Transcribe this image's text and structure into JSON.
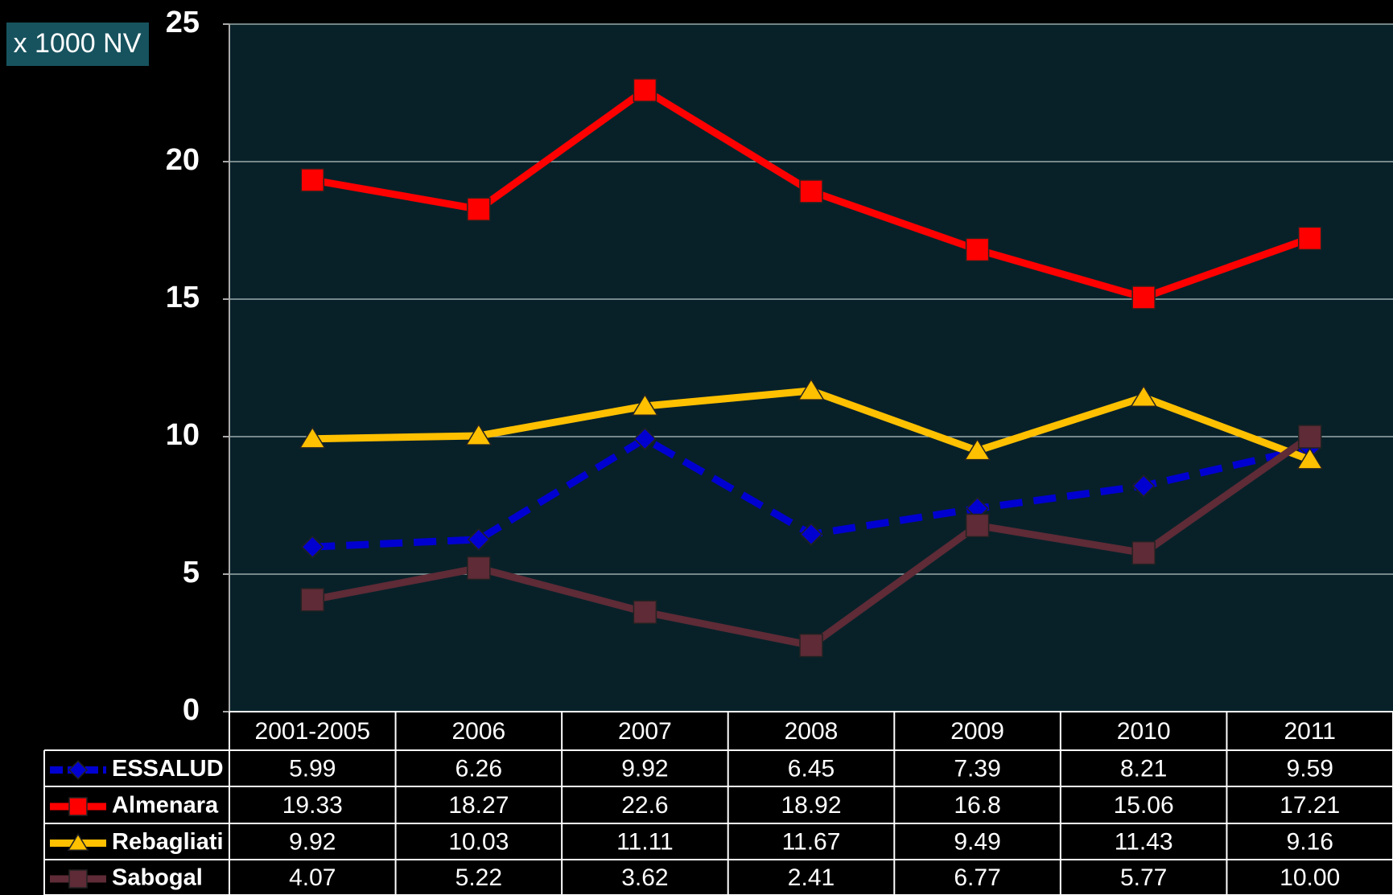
{
  "chart_data": {
    "type": "line",
    "y_label": "x 1000 NV",
    "categories": [
      "2001-2005",
      "2006",
      "2007",
      "2008",
      "2009",
      "2010",
      "2011"
    ],
    "series": [
      {
        "name": "ESSALUD",
        "color": "#0000d0",
        "marker": "diamond",
        "dashed": true,
        "values": [
          5.99,
          6.26,
          9.92,
          6.45,
          7.39,
          8.21,
          9.59
        ]
      },
      {
        "name": "Almenara",
        "color": "#ff0000",
        "marker": "square",
        "values": [
          19.33,
          18.27,
          22.6,
          18.92,
          16.8,
          15.06,
          17.21
        ]
      },
      {
        "name": "Rebagliati",
        "color": "#ffc000",
        "marker": "triangle",
        "values": [
          9.92,
          10.03,
          11.11,
          11.67,
          9.49,
          11.43,
          9.16
        ]
      },
      {
        "name": "Sabogal",
        "color": "#5e2b36",
        "marker": "square",
        "values": [
          4.07,
          5.22,
          3.62,
          2.41,
          6.77,
          5.77,
          10
        ],
        "value_labels": [
          "4.07",
          "5.22",
          "3.62",
          "2.41",
          "6.77",
          "5.77",
          "10.00"
        ]
      }
    ],
    "ylim": [
      0,
      25
    ],
    "yticks": [
      0,
      5,
      10,
      15,
      20,
      25
    ],
    "grid": true
  }
}
